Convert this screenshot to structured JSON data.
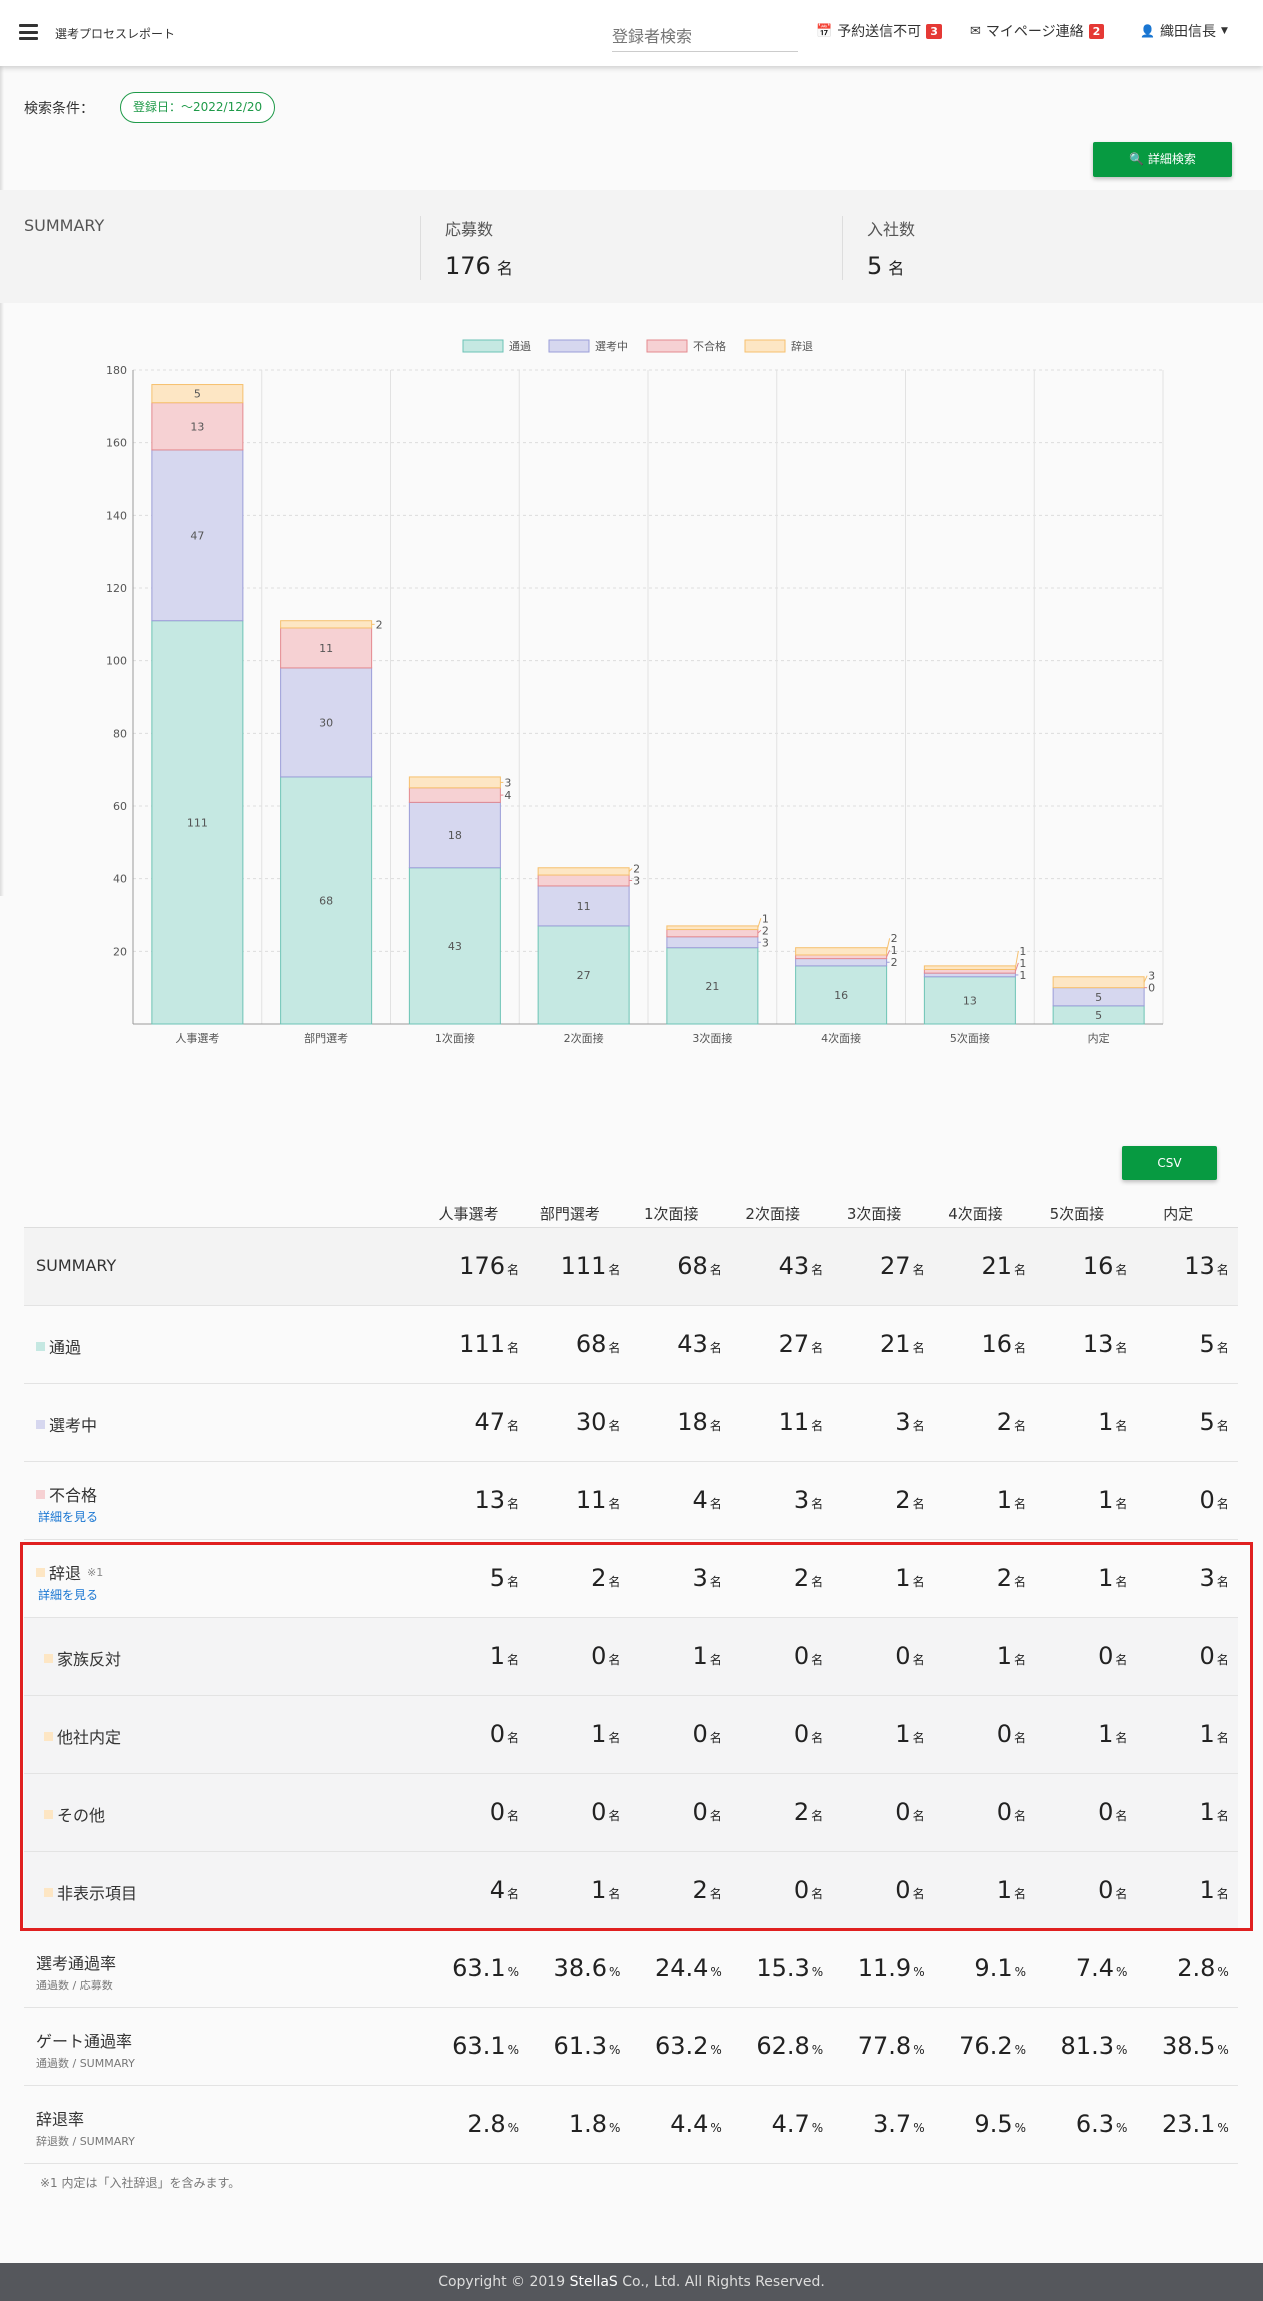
{
  "header": {
    "title": "選考プロセスレポート",
    "search_placeholder": "登録者検索",
    "nav": [
      {
        "label": "予約送信不可",
        "badge": "3",
        "icon": "calendar-check-icon"
      },
      {
        "label": "マイページ連絡",
        "badge": "2",
        "icon": "envelope-icon"
      },
      {
        "label": "織田信長",
        "icon": "user-icon"
      }
    ]
  },
  "filter": {
    "label": "検索条件：",
    "chip": "登録日：～2022/12/20",
    "advanced_search": "詳細検索"
  },
  "summary": {
    "title": "SUMMARY",
    "applicants_label": "応募数",
    "applicants_value": "176",
    "applicants_unit": "名",
    "hires_label": "入社数",
    "hires_value": "5",
    "hires_unit": "名"
  },
  "colors": {
    "pass": "#c5e8e2",
    "in_progress": "#d6d7ef",
    "rejected": "#f6d1d3",
    "declined": "#fde6c4",
    "accent": "#079a41"
  },
  "chart_data": {
    "type": "bar",
    "stacked": true,
    "categories": [
      "人事選考",
      "部門選考",
      "1次面接",
      "2次面接",
      "3次面接",
      "4次面接",
      "5次面接",
      "内定"
    ],
    "series": [
      {
        "name": "通過",
        "values": [
          111,
          68,
          43,
          27,
          21,
          16,
          13,
          5
        ],
        "color": "#c5e8e2",
        "border": "#6cc3b5"
      },
      {
        "name": "選考中",
        "values": [
          47,
          30,
          18,
          11,
          3,
          2,
          1,
          5
        ],
        "color": "#d6d7ef",
        "border": "#9b9dd8"
      },
      {
        "name": "不合格",
        "values": [
          13,
          11,
          4,
          3,
          2,
          1,
          1,
          0
        ],
        "color": "#f6d1d3",
        "border": "#e4898f"
      },
      {
        "name": "辞退",
        "values": [
          5,
          2,
          3,
          2,
          1,
          2,
          1,
          3
        ],
        "color": "#fde6c4",
        "border": "#f6c06e"
      }
    ],
    "ylim": [
      0,
      180
    ],
    "yticks": [
      20,
      40,
      60,
      80,
      100,
      120,
      140,
      160,
      180
    ],
    "grid": true,
    "legend": "top-center"
  },
  "table": {
    "csv": "CSV",
    "columns": [
      "人事選考",
      "部門選考",
      "1次面接",
      "2次面接",
      "3次面接",
      "4次面接",
      "5次面接",
      "内定"
    ],
    "rows": [
      {
        "label": "SUMMARY",
        "values": [
          "176",
          "111",
          "68",
          "43",
          "27",
          "21",
          "16",
          "13"
        ],
        "unit": "名",
        "style": "gray"
      },
      {
        "label": "通過",
        "swatch": "#c5e8e2",
        "values": [
          "111",
          "68",
          "43",
          "27",
          "21",
          "16",
          "13",
          "5"
        ],
        "unit": "名"
      },
      {
        "label": "選考中",
        "swatch": "#d6d7ef",
        "values": [
          "47",
          "30",
          "18",
          "11",
          "3",
          "2",
          "1",
          "5"
        ],
        "unit": "名"
      },
      {
        "label": "不合格",
        "swatch": "#f6d1d3",
        "link": "詳細を見る",
        "values": [
          "13",
          "11",
          "4",
          "3",
          "2",
          "1",
          "1",
          "0"
        ],
        "unit": "名"
      },
      {
        "label": "辞退",
        "swatch": "#fde6c4",
        "note": "※1",
        "link": "詳細を見る",
        "values": [
          "5",
          "2",
          "3",
          "2",
          "1",
          "2",
          "1",
          "3"
        ],
        "unit": "名"
      },
      {
        "label": "家族反対",
        "swatch": "#fde6c4",
        "values": [
          "1",
          "0",
          "1",
          "0",
          "0",
          "1",
          "0",
          "0"
        ],
        "unit": "名",
        "style": "sub"
      },
      {
        "label": "他社内定",
        "swatch": "#fde6c4",
        "values": [
          "0",
          "1",
          "0",
          "0",
          "1",
          "0",
          "1",
          "1"
        ],
        "unit": "名",
        "style": "sub"
      },
      {
        "label": "その他",
        "swatch": "#fde6c4",
        "values": [
          "0",
          "0",
          "0",
          "2",
          "0",
          "0",
          "0",
          "1"
        ],
        "unit": "名",
        "style": "sub"
      },
      {
        "label": "非表示項目",
        "swatch": "#fde6c4",
        "values": [
          "4",
          "1",
          "2",
          "0",
          "0",
          "1",
          "0",
          "1"
        ],
        "unit": "名",
        "style": "sub"
      },
      {
        "label": "選考通過率",
        "sublabel": "通過数 / 応募数",
        "values": [
          "63.1",
          "38.6",
          "24.4",
          "15.3",
          "11.9",
          "9.1",
          "7.4",
          "2.8"
        ],
        "unit": "%"
      },
      {
        "label": "ゲート通過率",
        "sublabel": "通過数 / SUMMARY",
        "values": [
          "63.1",
          "61.3",
          "63.2",
          "62.8",
          "77.8",
          "76.2",
          "81.3",
          "38.5"
        ],
        "unit": "%"
      },
      {
        "label": "辞退率",
        "sublabel": "辞退数 / SUMMARY",
        "values": [
          "2.8",
          "1.8",
          "4.4",
          "4.7",
          "3.7",
          "9.5",
          "6.3",
          "23.1"
        ],
        "unit": "%"
      }
    ],
    "footnote": "※1 内定は「入社辞退」を含みます。"
  },
  "footer": {
    "prefix": "Copyright © 2019 ",
    "brand": "StellaS",
    "suffix": " Co., Ltd. All Rights Reserved."
  }
}
